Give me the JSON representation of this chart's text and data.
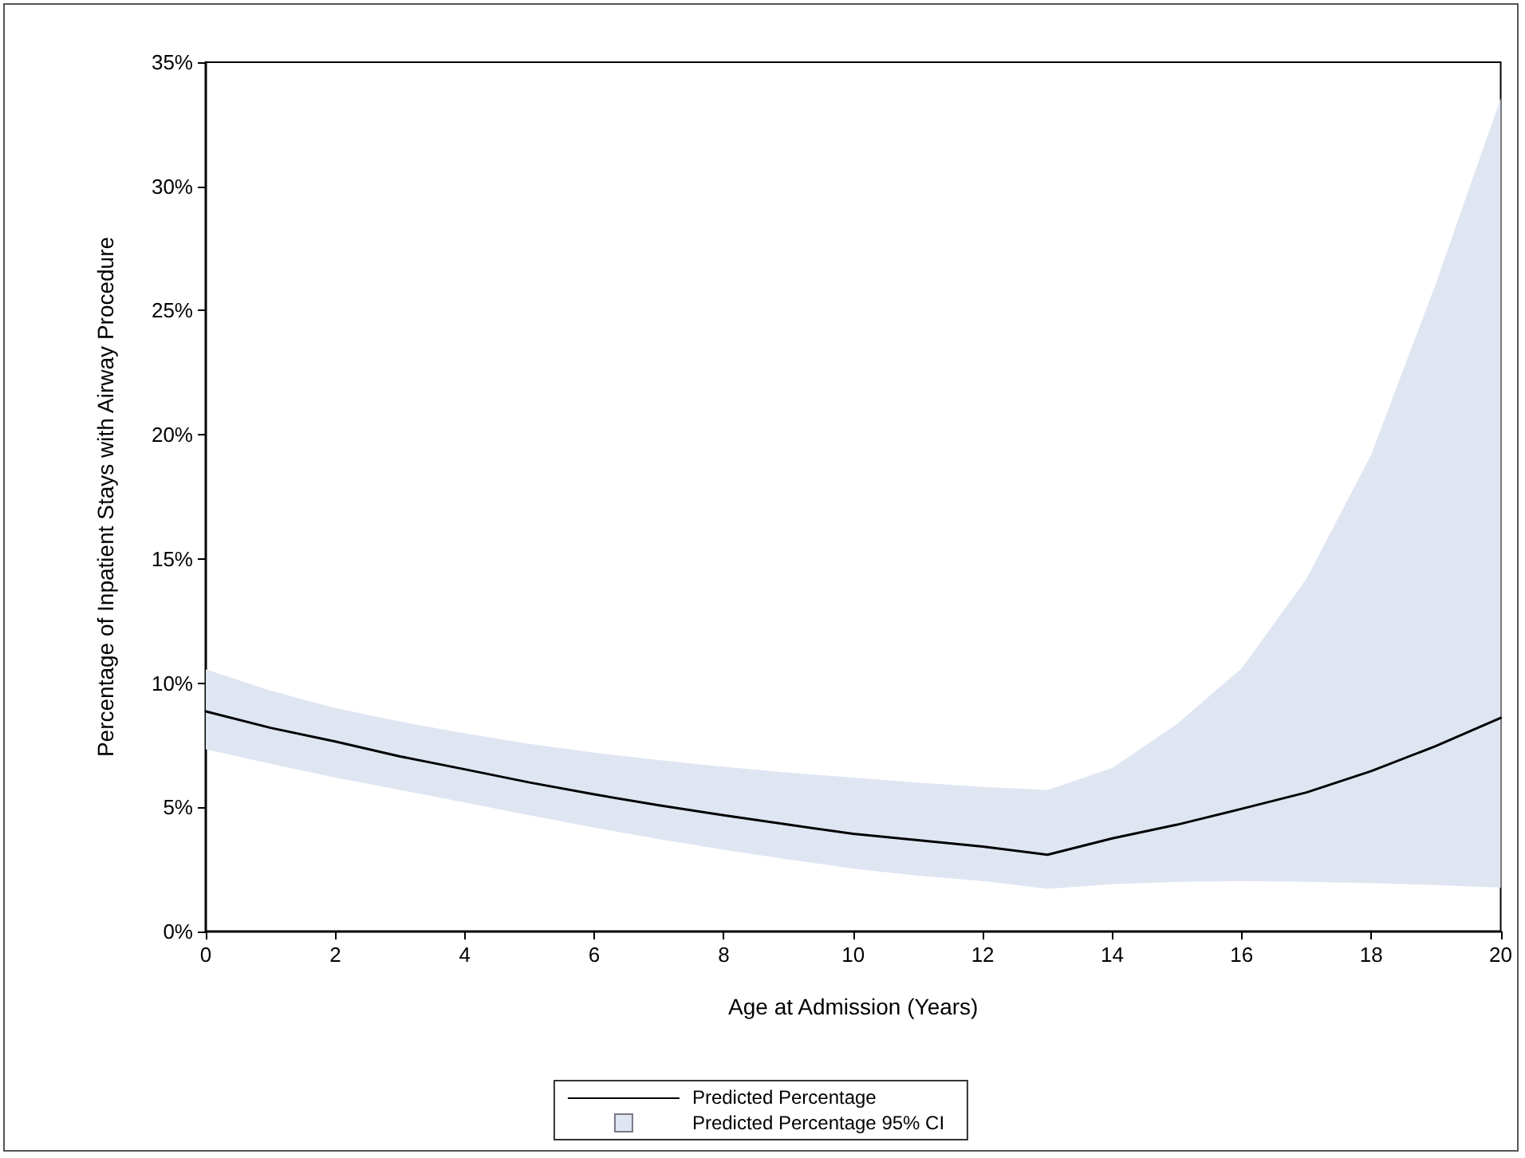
{
  "chart_data": {
    "type": "line",
    "xlabel": "Age at Admission (Years)",
    "ylabel": "Percentage of Inpatient Stays with Airway Procedure",
    "x": [
      0,
      1,
      2,
      3,
      4,
      5,
      6,
      7,
      8,
      9,
      10,
      11,
      12,
      13,
      14,
      15,
      16,
      17,
      18,
      19,
      20
    ],
    "series": [
      {
        "name": "Predicted Percentage",
        "type": "line",
        "color": "#000000",
        "values": [
          8.86,
          8.2,
          7.65,
          7.05,
          6.53,
          6.0,
          5.52,
          5.08,
          4.68,
          4.3,
          3.93,
          3.68,
          3.42,
          3.09,
          3.75,
          4.3,
          4.94,
          5.6,
          6.46,
          7.47,
          8.6
        ],
        "lower": [
          7.34,
          6.75,
          6.2,
          5.7,
          5.19,
          4.68,
          4.18,
          3.72,
          3.29,
          2.9,
          2.53,
          2.25,
          2.03,
          1.72,
          1.9,
          2.0,
          2.03,
          2.0,
          1.95,
          1.87,
          1.77
        ],
        "upper": [
          10.56,
          9.7,
          9.0,
          8.45,
          7.98,
          7.55,
          7.2,
          6.9,
          6.63,
          6.4,
          6.2,
          6.0,
          5.82,
          5.7,
          6.58,
          8.36,
          10.6,
          14.2,
          19.2,
          26.1,
          33.55
        ]
      }
    ],
    "annotations": [
      "Predicted Percentage 95% CI"
    ],
    "xlim": [
      0,
      20
    ],
    "xticks": [
      0,
      2,
      4,
      6,
      8,
      10,
      12,
      14,
      16,
      18,
      20
    ],
    "ylim": [
      0,
      35
    ],
    "yticks": [
      {
        "value": 0,
        "label": "0%"
      },
      {
        "value": 5,
        "label": "5%"
      },
      {
        "value": 10,
        "label": "10%"
      },
      {
        "value": 15,
        "label": "15%"
      },
      {
        "value": 20,
        "label": "20%"
      },
      {
        "value": 25,
        "label": "25%"
      },
      {
        "value": 30,
        "label": "30%"
      },
      {
        "value": 35,
        "label": "35%"
      }
    ],
    "grid": false,
    "legend": "bottom",
    "marker": "none",
    "line_style": "solid"
  }
}
